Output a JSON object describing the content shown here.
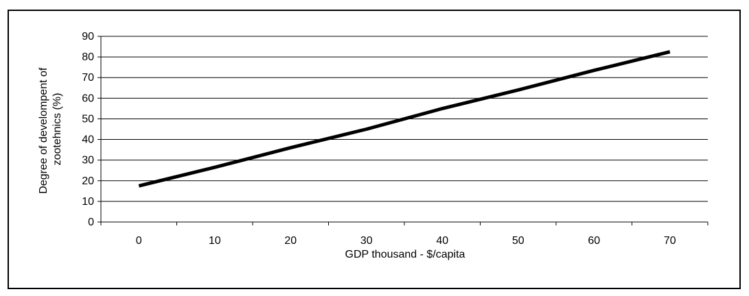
{
  "chart_data": {
    "type": "line",
    "title": "",
    "xlabel": "GDP thousand - $/capita",
    "ylabel_lines": [
      "Degree of develompent of",
      "zootehnics (%)"
    ],
    "x_ticks": [
      0,
      10,
      20,
      30,
      40,
      50,
      60,
      70
    ],
    "y_ticks": [
      0,
      10,
      20,
      30,
      40,
      50,
      60,
      70,
      80,
      90
    ],
    "xlim": [
      -5,
      75
    ],
    "ylim": [
      0,
      90
    ],
    "grid": "horizontal",
    "legend": "none",
    "series": [
      {
        "color": "#000000",
        "x": [
          0,
          10,
          20,
          30,
          40,
          50,
          60,
          70
        ],
        "y": [
          17.5,
          26.5,
          36,
          45,
          55,
          64,
          73.5,
          82.5
        ]
      }
    ]
  }
}
